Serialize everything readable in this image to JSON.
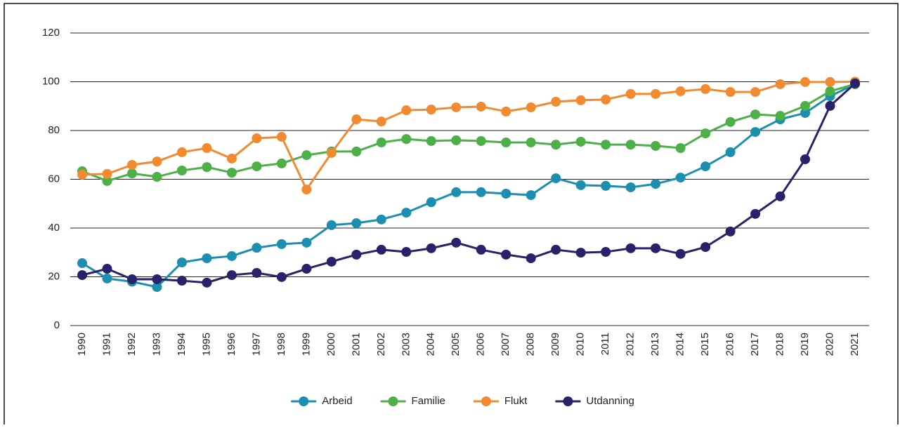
{
  "chart_data": {
    "type": "line",
    "categories": [
      "1990",
      "1991",
      "1992",
      "1993",
      "1994",
      "1995",
      "1996",
      "1997",
      "1998",
      "1999",
      "2000",
      "2001",
      "2002",
      "2003",
      "2004",
      "2005",
      "2006",
      "2007",
      "2008",
      "2009",
      "2010",
      "2011",
      "2012",
      "2013",
      "2014",
      "2015",
      "2016",
      "2017",
      "2018",
      "2019",
      "2020",
      "2021"
    ],
    "series": [
      {
        "name": "Arbeid",
        "color": "#1c8fb1",
        "values": [
          25.6,
          19.3,
          18.0,
          15.8,
          25.9,
          27.6,
          28.5,
          31.9,
          33.4,
          34.0,
          41.2,
          42.0,
          43.5,
          46.3,
          50.6,
          54.7,
          54.7,
          54.1,
          53.5,
          60.4,
          57.6,
          57.3,
          56.7,
          58.1,
          60.7,
          65.3,
          71.1,
          79.4,
          84.6,
          87.2,
          94.1,
          99.0
        ]
      },
      {
        "name": "Familie",
        "color": "#4caf48",
        "values": [
          63.3,
          59.3,
          62.4,
          61.0,
          63.6,
          65.0,
          62.7,
          65.3,
          66.5,
          69.9,
          71.4,
          71.4,
          75.1,
          76.5,
          75.7,
          76.0,
          75.7,
          75.1,
          75.1,
          74.2,
          75.4,
          74.2,
          74.2,
          73.7,
          72.8,
          78.8,
          83.5,
          86.6,
          86.0,
          90.1,
          96.1,
          99.0
        ]
      },
      {
        "name": "Flukt",
        "color": "#f28a30",
        "values": [
          61.9,
          62.2,
          65.9,
          67.3,
          71.1,
          72.8,
          68.5,
          76.8,
          77.4,
          55.8,
          70.8,
          84.6,
          83.7,
          88.3,
          88.6,
          89.5,
          89.8,
          87.8,
          89.5,
          91.8,
          92.4,
          92.7,
          95.0,
          95.0,
          96.1,
          97.0,
          95.8,
          95.8,
          99.0,
          99.9,
          99.9,
          100.0
        ]
      },
      {
        "name": "Utdanning",
        "color": "#28226b",
        "values": [
          20.7,
          23.3,
          19.0,
          19.0,
          18.4,
          17.6,
          20.7,
          21.6,
          19.9,
          23.3,
          26.2,
          29.1,
          31.1,
          30.2,
          31.7,
          34.0,
          31.1,
          29.1,
          27.6,
          31.1,
          29.9,
          30.2,
          31.7,
          31.7,
          29.4,
          32.2,
          38.6,
          45.8,
          53.0,
          68.2,
          90.1,
          99.3
        ]
      }
    ],
    "ylim": [
      0,
      120
    ],
    "yticks": [
      0,
      20,
      40,
      60,
      80,
      100,
      120
    ],
    "grid": true,
    "legend": "bottom"
  }
}
